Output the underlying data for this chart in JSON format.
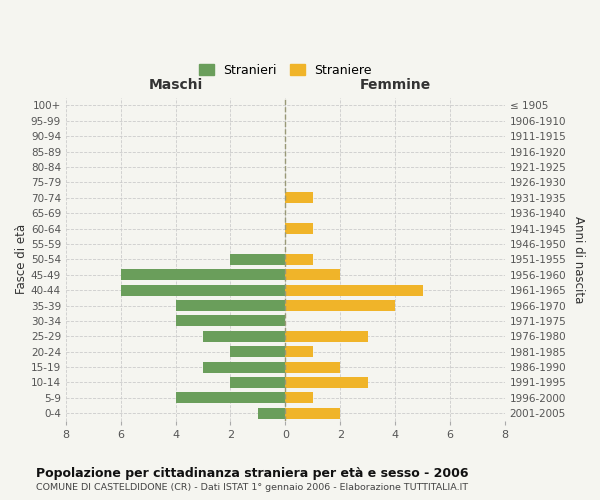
{
  "age_groups": [
    "0-4",
    "5-9",
    "10-14",
    "15-19",
    "20-24",
    "25-29",
    "30-34",
    "35-39",
    "40-44",
    "45-49",
    "50-54",
    "55-59",
    "60-64",
    "65-69",
    "70-74",
    "75-79",
    "80-84",
    "85-89",
    "90-94",
    "95-99",
    "100+"
  ],
  "birth_years": [
    "2001-2005",
    "1996-2000",
    "1991-1995",
    "1986-1990",
    "1981-1985",
    "1976-1980",
    "1971-1975",
    "1966-1970",
    "1961-1965",
    "1956-1960",
    "1951-1955",
    "1946-1950",
    "1941-1945",
    "1936-1940",
    "1931-1935",
    "1926-1930",
    "1921-1925",
    "1916-1920",
    "1911-1915",
    "1906-1910",
    "≤ 1905"
  ],
  "maschi": [
    1,
    4,
    2,
    3,
    2,
    3,
    4,
    4,
    6,
    6,
    2,
    0,
    0,
    0,
    0,
    0,
    0,
    0,
    0,
    0,
    0
  ],
  "femmine": [
    2,
    1,
    3,
    2,
    1,
    3,
    0,
    4,
    5,
    2,
    1,
    0,
    1,
    0,
    1,
    0,
    0,
    0,
    0,
    0,
    0
  ],
  "color_maschi": "#6a9e5b",
  "color_femmine": "#f0b429",
  "title": "Popolazione per cittadinanza straniera per età e sesso - 2006",
  "subtitle": "COMUNE DI CASTELDIDONE (CR) - Dati ISTAT 1° gennaio 2006 - Elaborazione TUTTITALIA.IT",
  "xlabel_left": "Maschi",
  "xlabel_right": "Femmine",
  "ylabel_left": "Fasce di età",
  "ylabel_right": "Anni di nascita",
  "legend_stranieri": "Stranieri",
  "legend_straniere": "Straniere",
  "xlim": 8,
  "background_color": "#f5f5f0",
  "grid_color": "#cccccc"
}
